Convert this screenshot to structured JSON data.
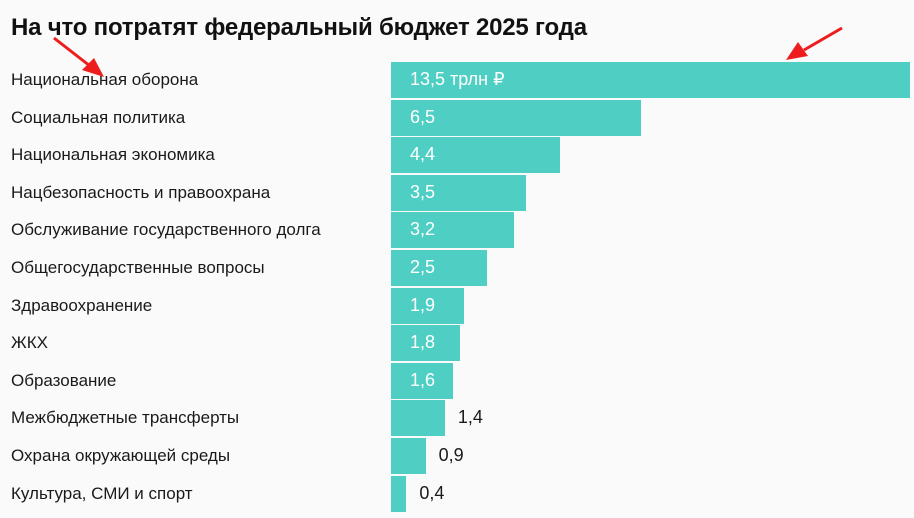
{
  "chart_data": {
    "type": "bar",
    "orientation": "horizontal",
    "title": "На что потратят федеральный бюджет 2025 года",
    "unit_label": "трлн ₽",
    "categories": [
      "Национальная оборона",
      "Социальная политика",
      "Национальная экономика",
      "Нацбезопасность и правоохрана",
      "Обслуживание государственного долга",
      "Общегосударственные вопросы",
      "Здравоохранение",
      "ЖКХ",
      "Образование",
      "Межбюджетные трансферты",
      "Охрана окружающей среды",
      "Культура, СМИ и спорт"
    ],
    "values": [
      13.5,
      6.5,
      4.4,
      3.5,
      3.2,
      2.5,
      1.9,
      1.8,
      1.6,
      1.4,
      0.9,
      0.4
    ],
    "value_labels": [
      "13,5 трлн ₽",
      "6,5",
      "4,4",
      "3,5",
      "3,2",
      "2,5",
      "1,9",
      "1,8",
      "1,6",
      "1,4",
      "0,9",
      "0,4"
    ],
    "xlim": [
      0,
      13.5
    ],
    "grid": false,
    "legend": "none",
    "colors": {
      "bar": "#4fcfc4",
      "label_inside": "#ffffff",
      "label_outside": "#1a1a1a",
      "annotation_arrow": "#ee1c1c"
    },
    "annotations": [
      "red-arrow-to-category-label",
      "red-arrow-to-largest-bar"
    ]
  }
}
